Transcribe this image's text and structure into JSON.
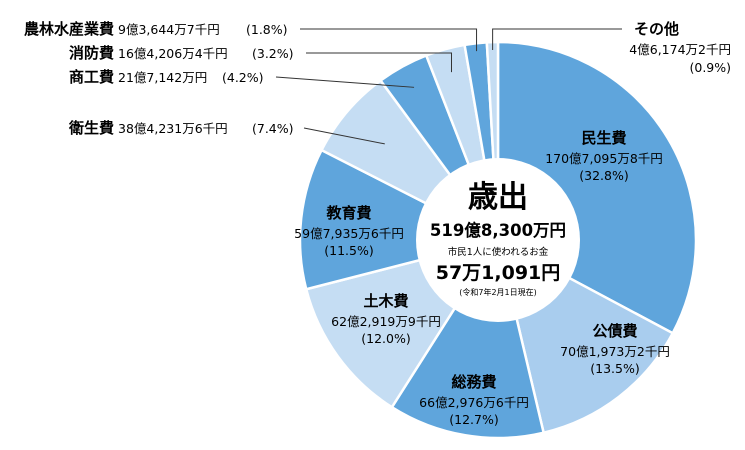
{
  "chart_data": {
    "type": "pie",
    "style": "donut",
    "start_angle_deg": 0,
    "direction": "clockwise",
    "center": {
      "title": "歳出",
      "total": "519億8,300万円",
      "per_capita_label": "市民1人に使われるお金",
      "per_capita_value": "57万1,091円",
      "as_of": "(令和7年2月1日現在)"
    },
    "slices": [
      {
        "name": "民生費",
        "amount": "170億7,095万8千円",
        "percent_label": "(32.8%)",
        "percent": 32.8,
        "color": "#5fa5dc"
      },
      {
        "name": "公債費",
        "amount": "70億1,973万2千円",
        "percent_label": "(13.5%)",
        "percent": 13.5,
        "color": "#a9cdee"
      },
      {
        "name": "総務費",
        "amount": "66億2,976万6千円",
        "percent_label": "(12.7%)",
        "percent": 12.7,
        "color": "#5fa5dc"
      },
      {
        "name": "土木費",
        "amount": "62億2,919万9千円",
        "percent_label": "(12.0%)",
        "percent": 12.0,
        "color": "#c5ddf3"
      },
      {
        "name": "教育費",
        "amount": "59億7,935万6千円",
        "percent_label": "(11.5%)",
        "percent": 11.5,
        "color": "#5fa5dc"
      },
      {
        "name": "衛生費",
        "amount": "38億4,231万6千円",
        "percent_label": "(7.4%)",
        "percent": 7.4,
        "color": "#c5ddf3"
      },
      {
        "name": "商工費",
        "amount": "21億7,142万円",
        "percent_label": "(4.2%)",
        "percent": 4.2,
        "color": "#5fa5dc"
      },
      {
        "name": "消防費",
        "amount": "16億4,206万4千円",
        "percent_label": "(3.2%)",
        "percent": 3.2,
        "color": "#c5ddf3"
      },
      {
        "name": "農林水産業費",
        "amount": "9億3,644万7千円",
        "percent_label": "(1.8%)",
        "percent": 1.8,
        "color": "#5fa5dc"
      },
      {
        "name": "その他",
        "amount": "4億6,174万2千円",
        "percent_label": "(0.9%)",
        "percent": 0.9,
        "color": "#c5ddf3"
      }
    ]
  }
}
